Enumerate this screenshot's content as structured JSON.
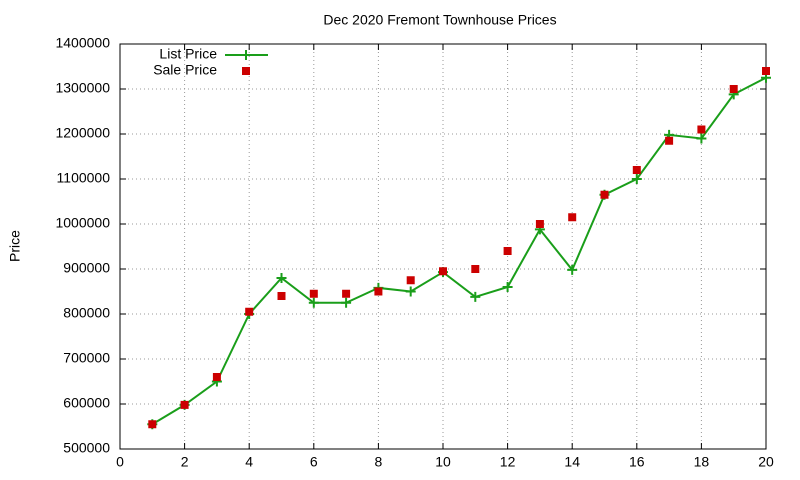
{
  "chart_data": {
    "type": "line",
    "title": "Dec 2020 Fremont Townhouse Prices",
    "y_label": "Price",
    "x": [
      1,
      2,
      3,
      4,
      5,
      6,
      7,
      8,
      9,
      10,
      11,
      12,
      13,
      14,
      15,
      16,
      17,
      18,
      19,
      20
    ],
    "series": [
      {
        "name": "List Price",
        "color": "#1a9e1a",
        "style": "linespoints",
        "marker": "plus",
        "values": [
          555000,
          598000,
          650000,
          800000,
          880000,
          825000,
          825000,
          858000,
          850000,
          893000,
          838000,
          860000,
          988000,
          898000,
          1065000,
          1100000,
          1198000,
          1190000,
          1288000,
          1325000
        ]
      },
      {
        "name": "Sale Price",
        "color": "#cc0000",
        "style": "points",
        "marker": "square",
        "values": [
          555000,
          598000,
          660000,
          805000,
          840000,
          845000,
          845000,
          850000,
          875000,
          895000,
          900000,
          940000,
          1000000,
          1015000,
          1065000,
          1120000,
          1185000,
          1210000,
          1300000,
          1340000
        ]
      }
    ],
    "xlim": [
      0,
      20
    ],
    "xticks": [
      0,
      2,
      4,
      6,
      8,
      10,
      12,
      14,
      16,
      18,
      20
    ],
    "ylim": [
      500000,
      1400000
    ],
    "yticks": [
      500000,
      600000,
      700000,
      800000,
      900000,
      1000000,
      1100000,
      1200000,
      1300000,
      1400000
    ],
    "grid": true,
    "legend": "top-left"
  }
}
